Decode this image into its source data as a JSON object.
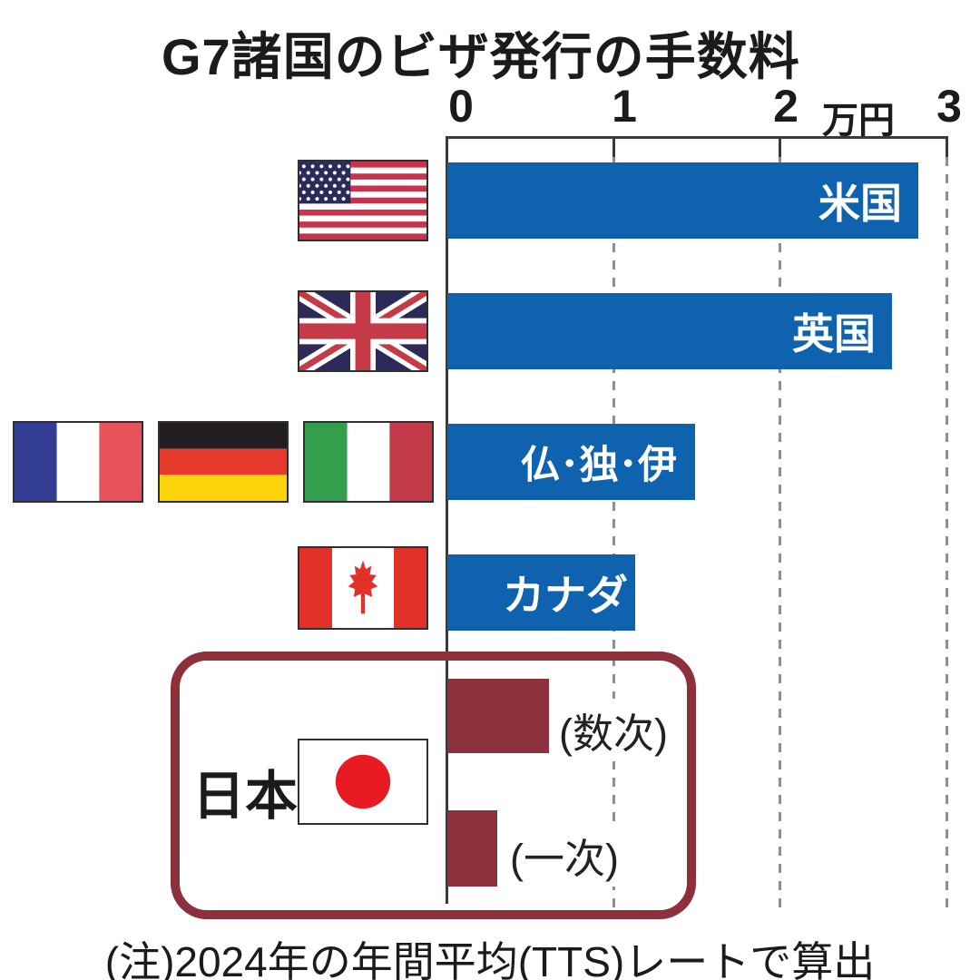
{
  "title": "G7諸国のビザ発行の手数料",
  "note": "(注)2024年の年間平均(TTS)レートで算出",
  "axis": {
    "ticks": [
      "0",
      "1",
      "2",
      "3"
    ],
    "unit_label": "万円"
  },
  "colors": {
    "bar_blue": "#0f63ae",
    "japan_maroon": "#8c303c",
    "axis_line": "#3a3a3a",
    "gridline_gray": "#8f8f8f"
  },
  "chart_data": {
    "type": "bar",
    "orientation": "horizontal",
    "title": "G7諸国のビザ発行の手数料",
    "xlabel_unit": "万円",
    "xlim": [
      0,
      3
    ],
    "gridlines": "dashed vertical at 1, 2, 3",
    "rows": [
      {
        "label": "米国",
        "flag": "usa-flag",
        "value": 2.83
      },
      {
        "label": "英国",
        "flag": "uk-flag",
        "value": 2.67
      },
      {
        "label": "仏･独･伊",
        "flag": "france-germany-italy-flags",
        "value": 1.49
      },
      {
        "label": "カナダ",
        "flag": "canada-flag",
        "value": 1.13
      }
    ],
    "japan": {
      "label": "日本",
      "flag": "japan-flag",
      "entries": [
        {
          "label": "(数次)",
          "value": 0.61
        },
        {
          "label": "(一次)",
          "value": 0.3
        }
      ]
    }
  }
}
